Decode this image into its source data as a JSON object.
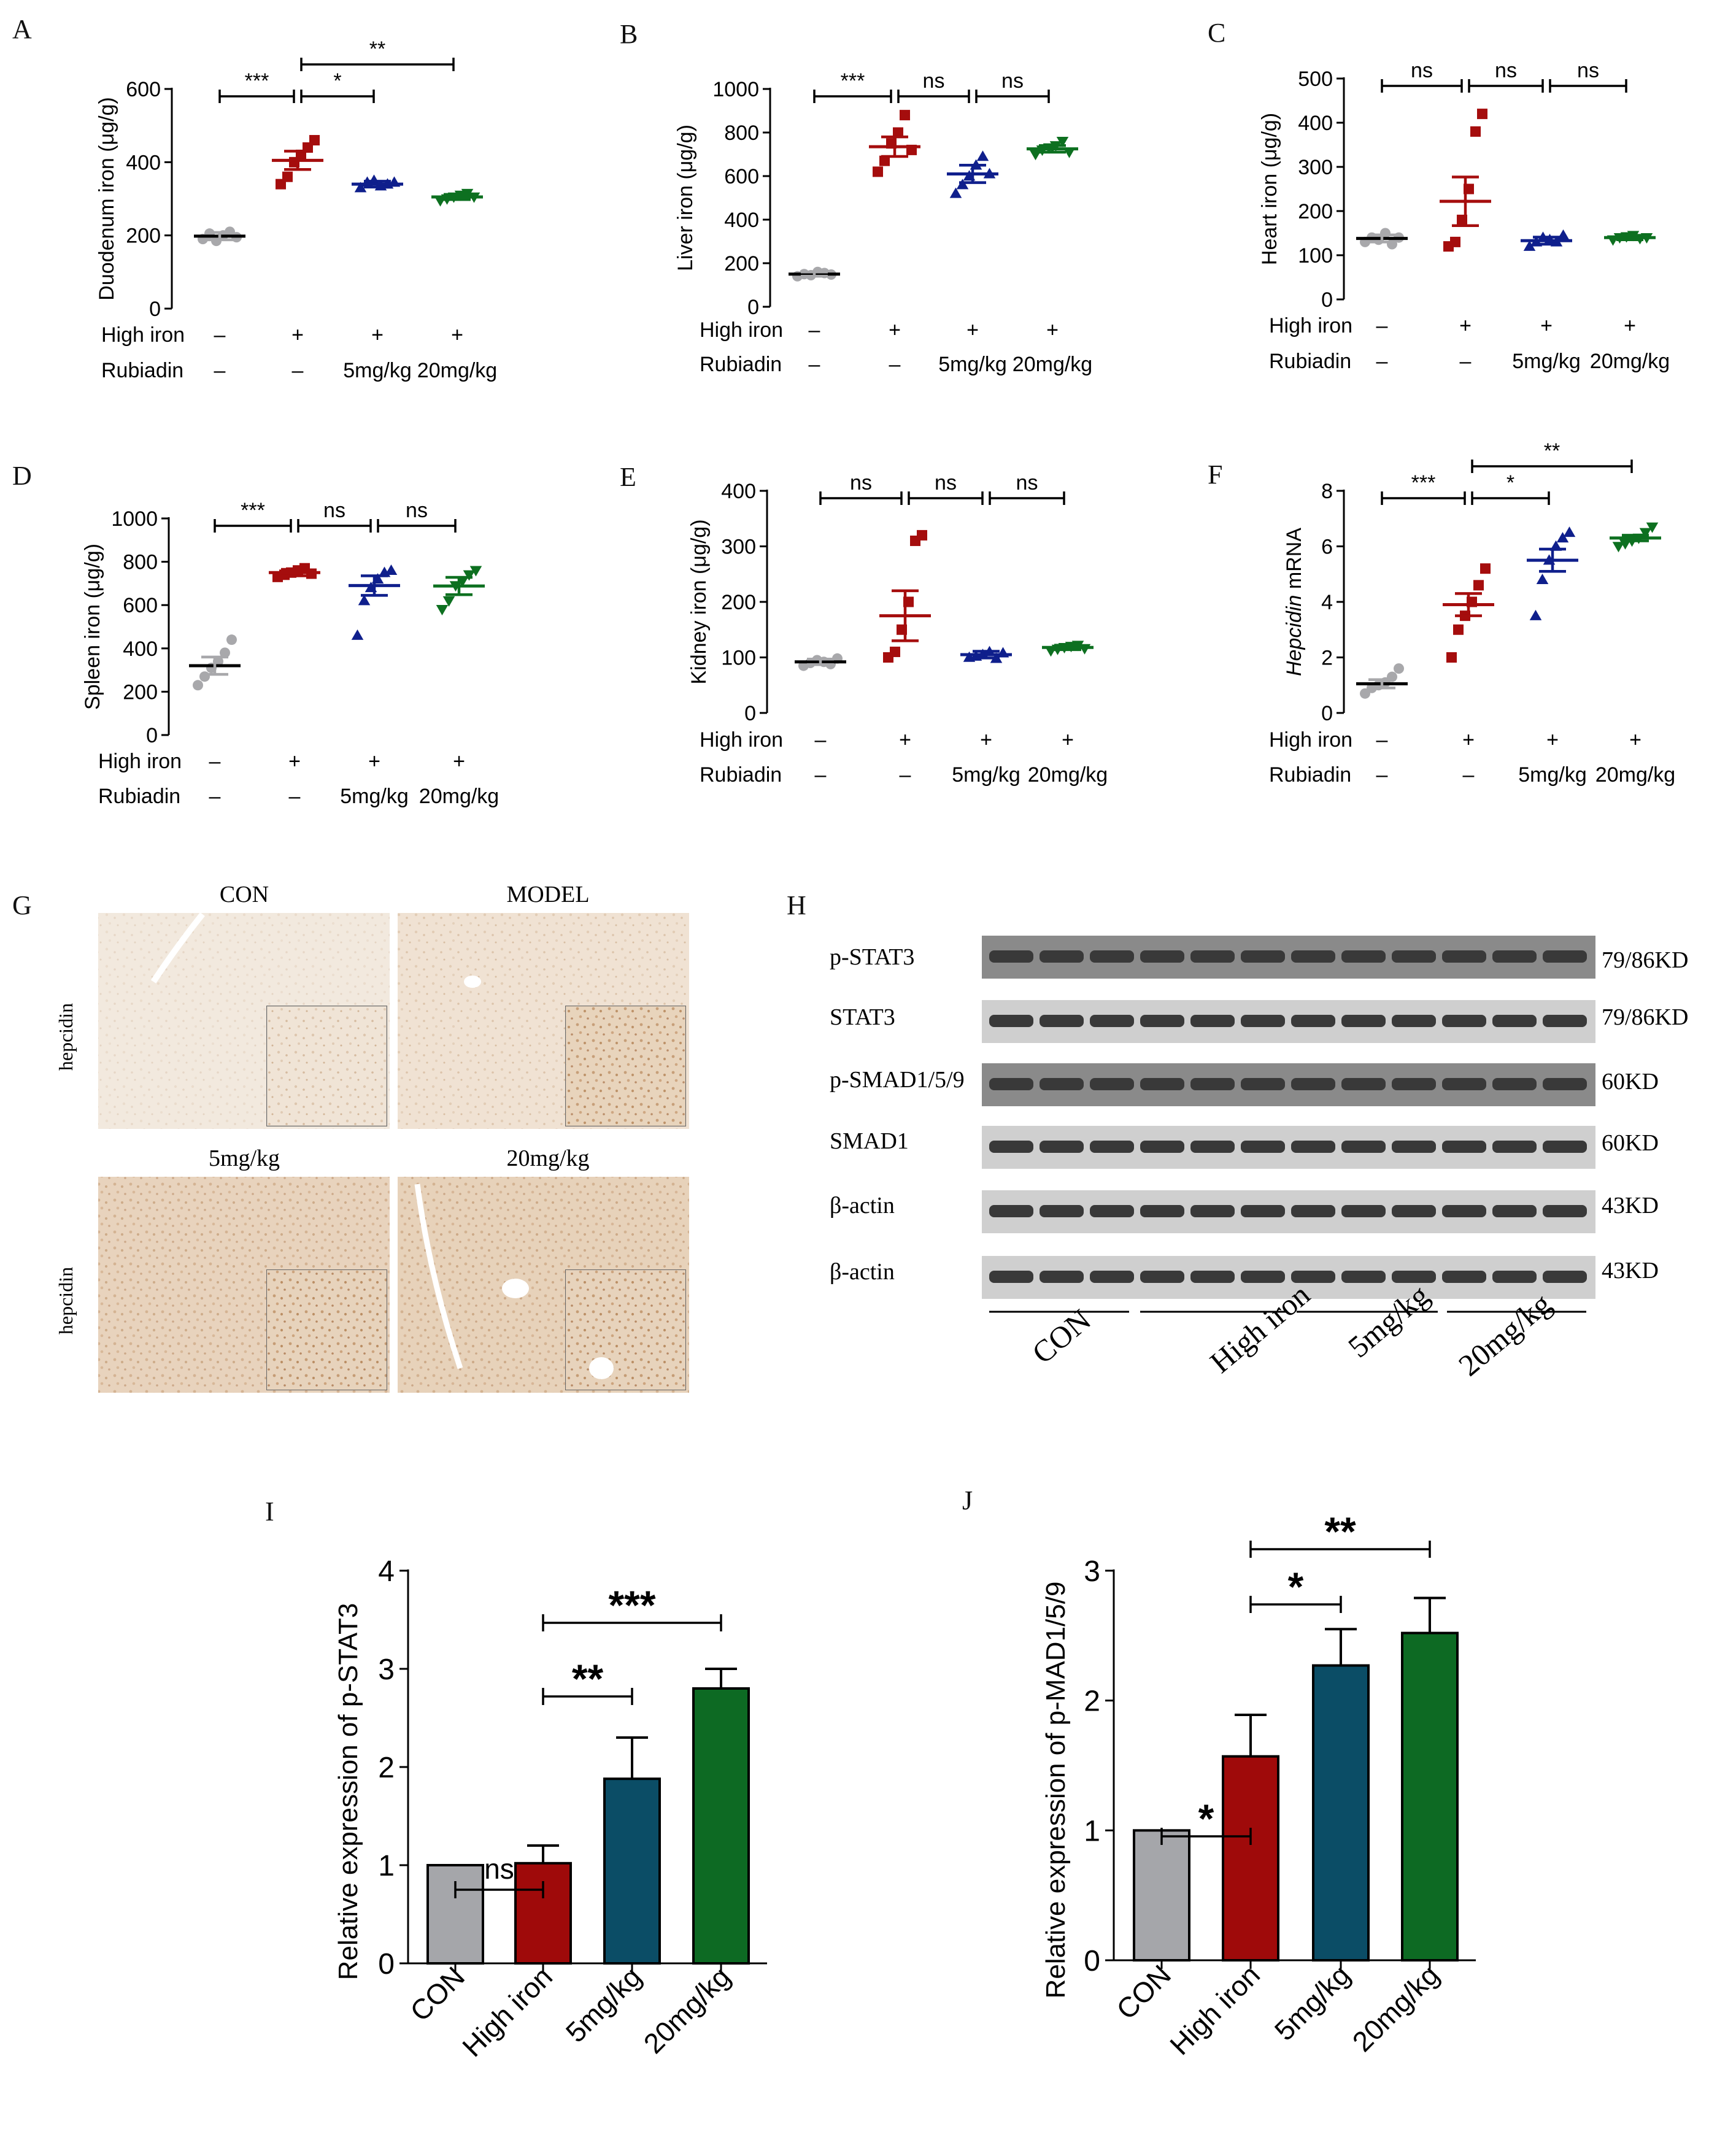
{
  "colors": {
    "CON": "#a8a8ab",
    "High iron": "#a50d0d",
    "5mg/kg": "#0f1f8c",
    "20mg/kg": "#0d7020",
    "bar_con": "#a5a6aa",
    "bar_high": "#9f0a0a",
    "bar_5": "#0b4d66",
    "bar_20": "#0d6a23"
  },
  "treatment_rows": {
    "high_iron_label": "High iron",
    "high_iron_values": [
      "–",
      "+",
      "+",
      "+"
    ],
    "rubiadin_label": "Rubiadin",
    "rubiadin_values": [
      "–",
      "–",
      "5mg/kg",
      "20mg/kg"
    ]
  },
  "chart_data": [
    {
      "panel": "A",
      "type": "scatter",
      "ylabel": "Duodenum iron (μg/g)",
      "ylim": [
        0,
        600
      ],
      "yticks": [
        0,
        200,
        400,
        600
      ],
      "groups": [
        "CON",
        "High iron",
        "5mg/kg",
        "20mg/kg"
      ],
      "mean": [
        198,
        405,
        340,
        305
      ],
      "sem": [
        10,
        25,
        8,
        7
      ],
      "points": [
        [
          190,
          205,
          185,
          200,
          210,
          195
        ],
        [
          340,
          360,
          400,
          420,
          440,
          460
        ],
        [
          330,
          345,
          350,
          335,
          340,
          345
        ],
        [
          295,
          300,
          305,
          310,
          315,
          305
        ]
      ],
      "significance": [
        {
          "from": 0,
          "to": 1,
          "label": "***",
          "level": 0
        },
        {
          "from": 1,
          "to": 2,
          "label": "*",
          "level": 0
        },
        {
          "from": 1,
          "to": 3,
          "label": "**",
          "level": 1
        }
      ]
    },
    {
      "panel": "B",
      "type": "scatter",
      "ylabel": "Liver iron (μg/g)",
      "ylim": [
        0,
        1000
      ],
      "yticks": [
        0,
        200,
        400,
        600,
        800,
        1000
      ],
      "groups": [
        "CON",
        "High iron",
        "5mg/kg",
        "20mg/kg"
      ],
      "mean": [
        150,
        735,
        610,
        725
      ],
      "sem": [
        10,
        45,
        40,
        15
      ],
      "points": [
        [
          140,
          150,
          145,
          160,
          155,
          148
        ],
        [
          620,
          670,
          750,
          800,
          880,
          720
        ],
        [
          520,
          560,
          600,
          650,
          690,
          610
        ],
        [
          700,
          720,
          730,
          740,
          760,
          710
        ]
      ],
      "significance": [
        {
          "from": 0,
          "to": 1,
          "label": "***",
          "level": 0
        },
        {
          "from": 1,
          "to": 2,
          "label": "ns",
          "level": 0
        },
        {
          "from": 2,
          "to": 3,
          "label": "ns",
          "level": 0
        }
      ]
    },
    {
      "panel": "C",
      "type": "scatter",
      "ylabel": "Heart iron (μg/g)",
      "ylim": [
        0,
        500
      ],
      "yticks": [
        0,
        100,
        200,
        300,
        400,
        500
      ],
      "groups": [
        "CON",
        "High iron",
        "5mg/kg",
        "20mg/kg"
      ],
      "mean": [
        138,
        222,
        133,
        140
      ],
      "sem": [
        8,
        55,
        8,
        5
      ],
      "points": [
        [
          130,
          140,
          135,
          150,
          125,
          140
        ],
        [
          120,
          130,
          180,
          250,
          380,
          420
        ],
        [
          120,
          130,
          140,
          135,
          130,
          145
        ],
        [
          135,
          140,
          142,
          145,
          138,
          140
        ]
      ],
      "significance": [
        {
          "from": 0,
          "to": 1,
          "label": "ns",
          "level": 0
        },
        {
          "from": 1,
          "to": 2,
          "label": "ns",
          "level": 0
        },
        {
          "from": 2,
          "to": 3,
          "label": "ns",
          "level": 0
        }
      ]
    },
    {
      "panel": "D",
      "type": "scatter",
      "ylabel": "Spleen iron (μg/g)",
      "ylim": [
        0,
        1000
      ],
      "yticks": [
        0,
        200,
        400,
        600,
        800,
        1000
      ],
      "groups": [
        "CON",
        "High iron",
        "5mg/kg",
        "20mg/kg"
      ],
      "mean": [
        320,
        750,
        690,
        688
      ],
      "sem": [
        40,
        15,
        45,
        40
      ],
      "points": [
        [
          230,
          270,
          310,
          340,
          380,
          440
        ],
        [
          730,
          740,
          750,
          760,
          770,
          745
        ],
        [
          460,
          620,
          680,
          720,
          750,
          760
        ],
        [
          580,
          620,
          690,
          710,
          740,
          760
        ]
      ],
      "significance": [
        {
          "from": 0,
          "to": 1,
          "label": "***",
          "level": 0
        },
        {
          "from": 1,
          "to": 2,
          "label": "ns",
          "level": 0
        },
        {
          "from": 2,
          "to": 3,
          "label": "ns",
          "level": 0
        }
      ]
    },
    {
      "panel": "E",
      "type": "scatter",
      "ylabel": "Kidney iron (μg/g)",
      "ylim": [
        0,
        400
      ],
      "yticks": [
        0,
        100,
        200,
        300,
        400
      ],
      "groups": [
        "CON",
        "High iron",
        "5mg/kg",
        "20mg/kg"
      ],
      "mean": [
        92,
        175,
        105,
        118
      ],
      "sem": [
        5,
        45,
        6,
        4
      ],
      "points": [
        [
          85,
          90,
          95,
          92,
          88,
          98
        ],
        [
          100,
          110,
          150,
          200,
          310,
          320
        ],
        [
          100,
          102,
          105,
          110,
          98,
          108
        ],
        [
          112,
          115,
          118,
          120,
          122,
          116
        ]
      ],
      "significance": [
        {
          "from": 0,
          "to": 1,
          "label": "ns",
          "level": 0
        },
        {
          "from": 1,
          "to": 2,
          "label": "ns",
          "level": 0
        },
        {
          "from": 2,
          "to": 3,
          "label": "ns",
          "level": 0
        }
      ]
    },
    {
      "panel": "F",
      "type": "scatter",
      "ylabel_italic": "Hepcidin",
      "ylabel_rest": " mRNA",
      "ylim": [
        0,
        8
      ],
      "yticks": [
        0,
        2,
        4,
        6,
        8
      ],
      "groups": [
        "CON",
        "High iron",
        "5mg/kg",
        "20mg/kg"
      ],
      "mean": [
        1.05,
        3.9,
        5.5,
        6.3
      ],
      "sem": [
        0.15,
        0.4,
        0.4,
        0.1
      ],
      "points": [
        [
          0.7,
          0.9,
          1.0,
          1.1,
          1.3,
          1.6
        ],
        [
          2.0,
          3.0,
          3.5,
          4.0,
          4.6,
          5.2
        ],
        [
          3.5,
          4.8,
          5.5,
          6.0,
          6.3,
          6.5
        ],
        [
          6.0,
          6.1,
          6.2,
          6.3,
          6.5,
          6.7
        ]
      ],
      "significance": [
        {
          "from": 0,
          "to": 1,
          "label": "***",
          "level": 0
        },
        {
          "from": 1,
          "to": 2,
          "label": "*",
          "level": 0
        },
        {
          "from": 1,
          "to": 3,
          "label": "**",
          "level": 1
        }
      ]
    },
    {
      "panel": "I",
      "type": "bar",
      "ylabel": "Relative expression of p-STAT3",
      "ylim": [
        0,
        4
      ],
      "yticks": [
        0,
        1,
        2,
        3,
        4
      ],
      "categories": [
        "CON",
        "High iron",
        "5mg/kg",
        "20mg/kg"
      ],
      "values": [
        1.0,
        1.02,
        1.88,
        2.8
      ],
      "errors": [
        0,
        0.18,
        0.42,
        0.2
      ],
      "significance": [
        {
          "from": 0,
          "to": 1,
          "label": "ns",
          "level": 0
        },
        {
          "from": 1,
          "to": 2,
          "label": "**",
          "level": 1
        },
        {
          "from": 1,
          "to": 3,
          "label": "***",
          "level": 2
        }
      ]
    },
    {
      "panel": "J",
      "type": "bar",
      "ylabel": "Relative expression of p-MAD1/5/9",
      "ylim": [
        0,
        3
      ],
      "yticks": [
        0,
        1,
        2,
        3
      ],
      "categories": [
        "CON",
        "High iron",
        "5mg/kg",
        "20mg/kg"
      ],
      "values": [
        1.0,
        1.57,
        2.27,
        2.52
      ],
      "errors": [
        0,
        0.32,
        0.28,
        0.27
      ],
      "significance": [
        {
          "from": 0,
          "to": 1,
          "label": "*",
          "level": 0
        },
        {
          "from": 1,
          "to": 2,
          "label": "*",
          "level": 1
        },
        {
          "from": 1,
          "to": 3,
          "label": "**",
          "level": 2
        }
      ]
    }
  ],
  "panel_g": {
    "letter": "G",
    "titles": [
      "CON",
      "MODEL",
      "5mg/kg",
      "20mg/kg"
    ],
    "row_label": "hepcidin"
  },
  "panel_h": {
    "letter": "H",
    "rows": [
      {
        "name": "p-STAT3",
        "size": "79/86KD"
      },
      {
        "name": "STAT3",
        "size": "79/86KD"
      },
      {
        "name": "p-SMAD1/5/9",
        "size": "60KD"
      },
      {
        "name": "SMAD1",
        "size": "60KD"
      },
      {
        "name": "β-actin",
        "size": "43KD"
      },
      {
        "name": "β-actin",
        "size": "43KD"
      }
    ],
    "groups": [
      "CON",
      "High iron",
      "5mg/kg",
      "20mg/kg"
    ]
  }
}
